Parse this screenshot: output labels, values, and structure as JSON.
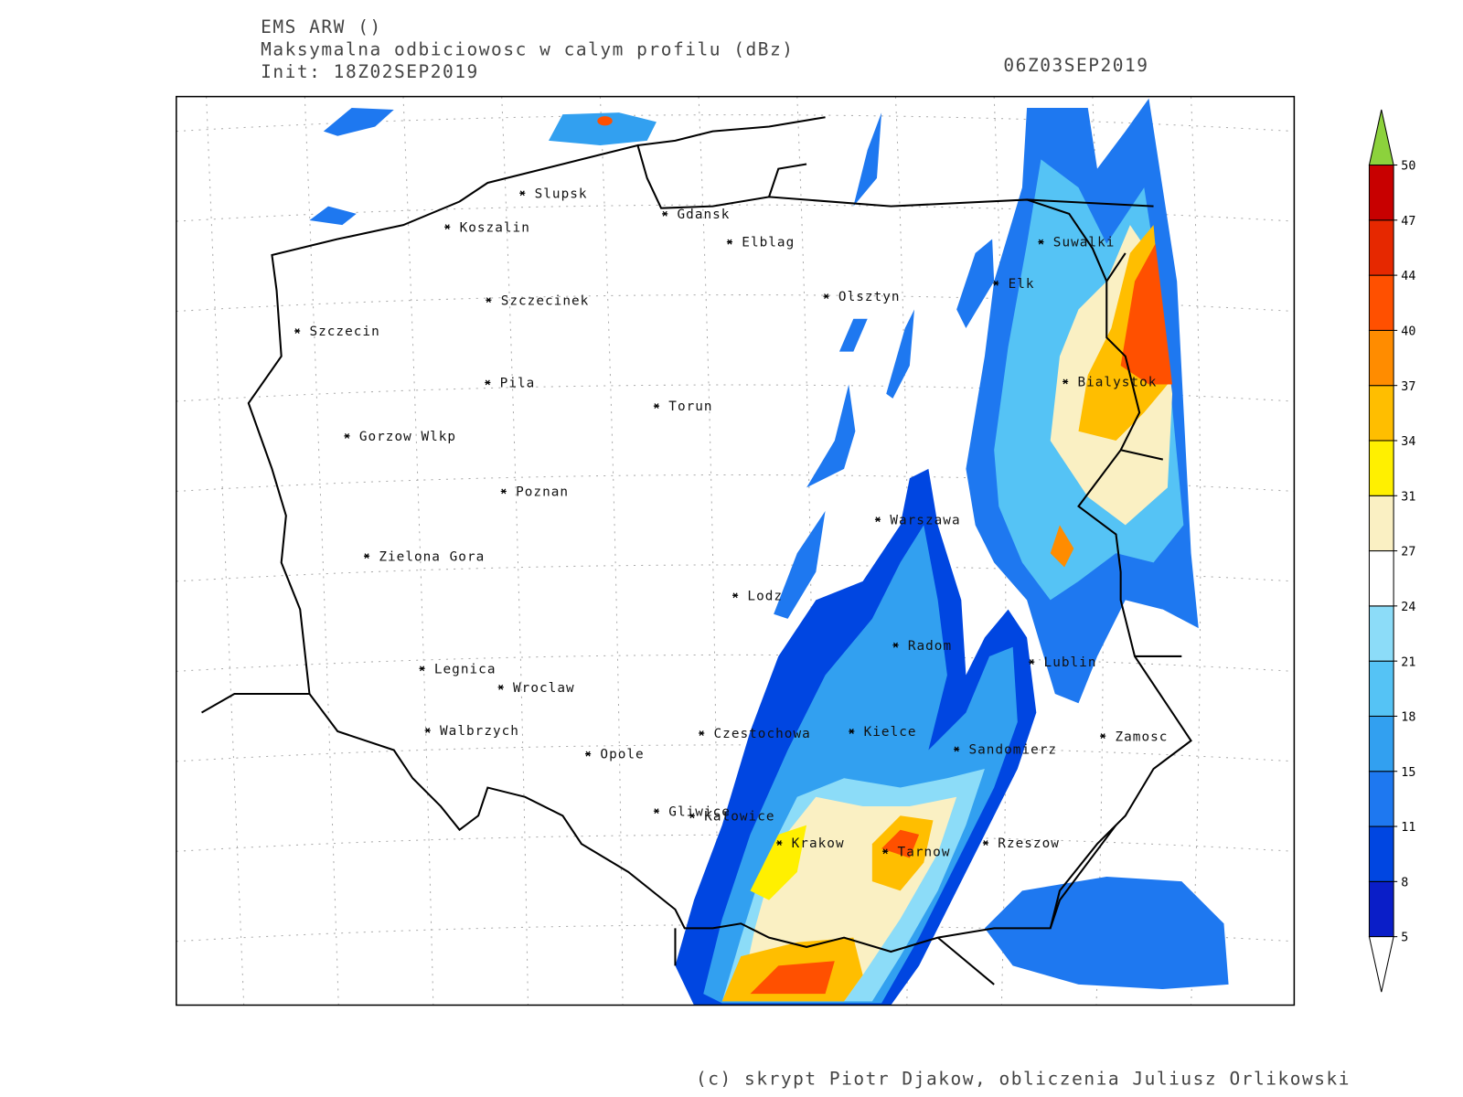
{
  "header": {
    "model": "EMS ARW ()",
    "field": "Maksymalna odbiciowosc w calym profilu (dBz)",
    "init": "Init: 18Z02SEP2019",
    "valid": "06Z03SEP2019"
  },
  "cities": [
    "Slupsk",
    "Koszalin",
    "Gdansk",
    "Elblag",
    "Szczecinek",
    "Olsztyn",
    "Suwalki",
    "Elk",
    "Szczecin",
    "Pila",
    "Torun",
    "Bialystok",
    "Gorzow Wlkp",
    "Poznan",
    "Warszawa",
    "Zielona Gora",
    "Lodz",
    "Radom",
    "Lublin",
    "Legnica",
    "Wroclaw",
    "Walbrzych",
    "Czestochowa",
    "Kielce",
    "Zamosc",
    "Sandomierz",
    "Opole",
    "Gliwice",
    "Katowice",
    "Krakow",
    "Tarnow",
    "Rzeszow"
  ],
  "colorbar": {
    "levels": [
      5,
      8,
      11,
      15,
      18,
      21,
      24,
      27,
      31,
      34,
      37,
      40,
      44,
      47,
      50
    ],
    "colors": [
      "#0a1ec8",
      "#0046e1",
      "#1e78f0",
      "#32a0f0",
      "#55c3f5",
      "#8cdcf8",
      "#ffffff",
      "#faf0c3",
      "#fff000",
      "#ffbe00",
      "#ff8c00",
      "#ff5000",
      "#e62800",
      "#c80000"
    ],
    "over_color": "#8cd23c",
    "under_color": "#ffffff"
  },
  "footer": "(c) skrypt Piotr Djakow, obliczenia Juliusz Orlikowski"
}
